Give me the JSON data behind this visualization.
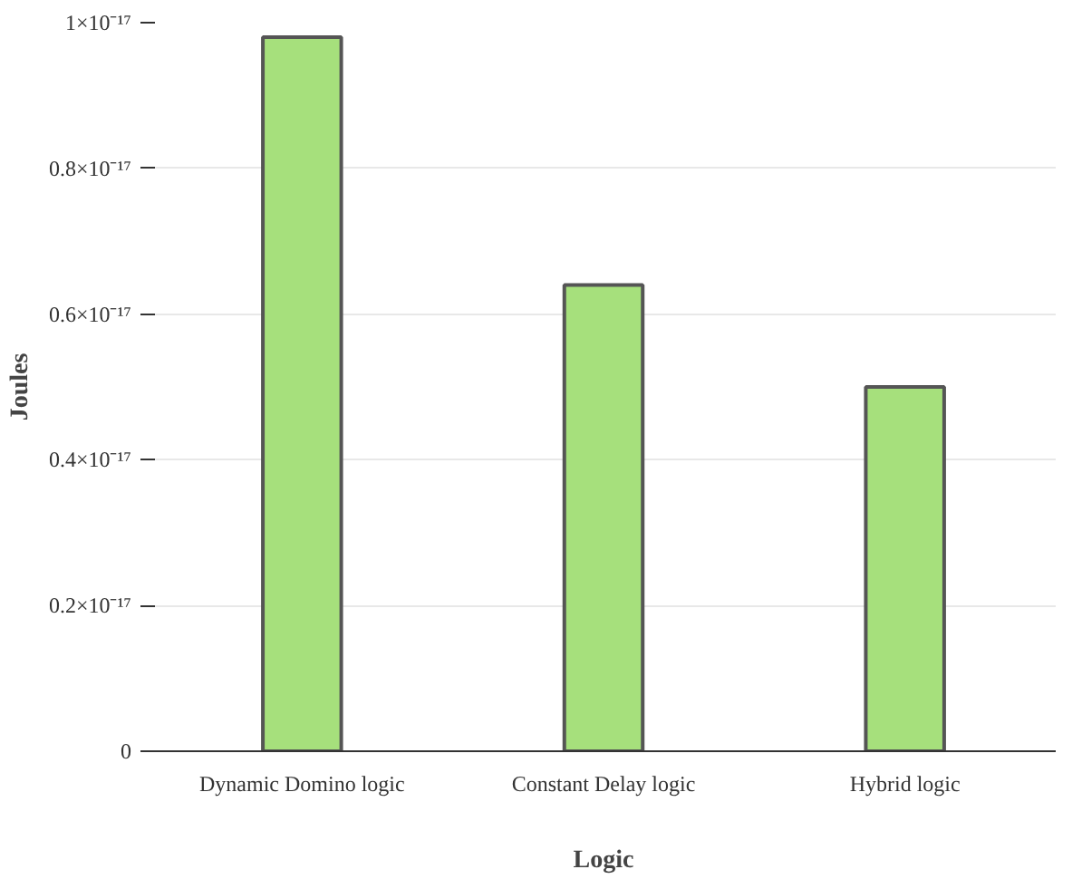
{
  "chart_data": {
    "type": "bar",
    "xlabel": "Logic",
    "ylabel": "Joules",
    "categories": [
      "Dynamic Domino logic",
      "Constant Delay logic",
      "Hybrid logic"
    ],
    "values": [
      9.8e-18,
      6.4e-18,
      5e-18
    ],
    "color": "#a6e07c",
    "ylim": [
      0,
      1e-17
    ],
    "yticks": [
      {
        "value": 0,
        "label": "0"
      },
      {
        "value": 2e-18,
        "label": "0.2×10⁻¹⁷"
      },
      {
        "value": 4e-18,
        "label": "0.4×10⁻¹⁷"
      },
      {
        "value": 6e-18,
        "label": "0.6×10⁻¹⁷"
      },
      {
        "value": 8e-18,
        "label": "0.8×10⁻¹⁷"
      },
      {
        "value": 1e-17,
        "label": "1×10⁻¹⁷"
      }
    ],
    "grid": "y"
  }
}
